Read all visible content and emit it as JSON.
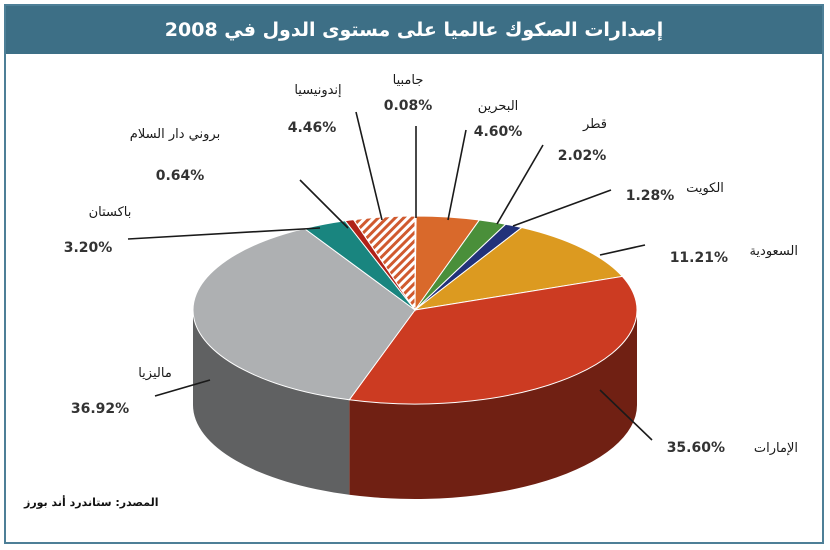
{
  "header": {
    "title": "إصدارات الصكوك عالميا على مستوى الدول في 2008"
  },
  "source": "المصدر: ستاندرد أند بورز",
  "chart_data": {
    "type": "pie",
    "title": "إصدارات الصكوك عالميا على مستوى الدول في 2008",
    "slices": [
      {
        "label": "جامبيا",
        "pct_text": "0.08%",
        "value": 0.08,
        "color": "#f0b08a"
      },
      {
        "label": "البحرين",
        "pct_text": "4.60%",
        "value": 4.6,
        "color": "#d9692b"
      },
      {
        "label": "قطر",
        "pct_text": "2.02%",
        "value": 2.02,
        "color": "#4a8f3a"
      },
      {
        "label": "الكويت",
        "pct_text": "1.28%",
        "value": 1.28,
        "color": "#22327a"
      },
      {
        "label": "السعودية",
        "pct_text": "11.21%",
        "value": 11.21,
        "color": "#dc9a20"
      },
      {
        "label": "الإمارات",
        "pct_text": "35.60%",
        "value": 35.6,
        "color": "#cc3b22"
      },
      {
        "label": "ماليزيا",
        "pct_text": "36.92%",
        "value": 36.92,
        "color": "#aeb0b2"
      },
      {
        "label": "باكستان",
        "pct_text": "3.20%",
        "value": 3.2,
        "color": "#19857f"
      },
      {
        "label": "بروني دار السلام",
        "pct_text": "0.64%",
        "value": 0.64,
        "color": "#b02218"
      },
      {
        "label": "إندونيسيا",
        "pct_text": "4.46%",
        "value": 4.46,
        "color": "#e9e1d8",
        "hatched": true
      }
    ]
  }
}
